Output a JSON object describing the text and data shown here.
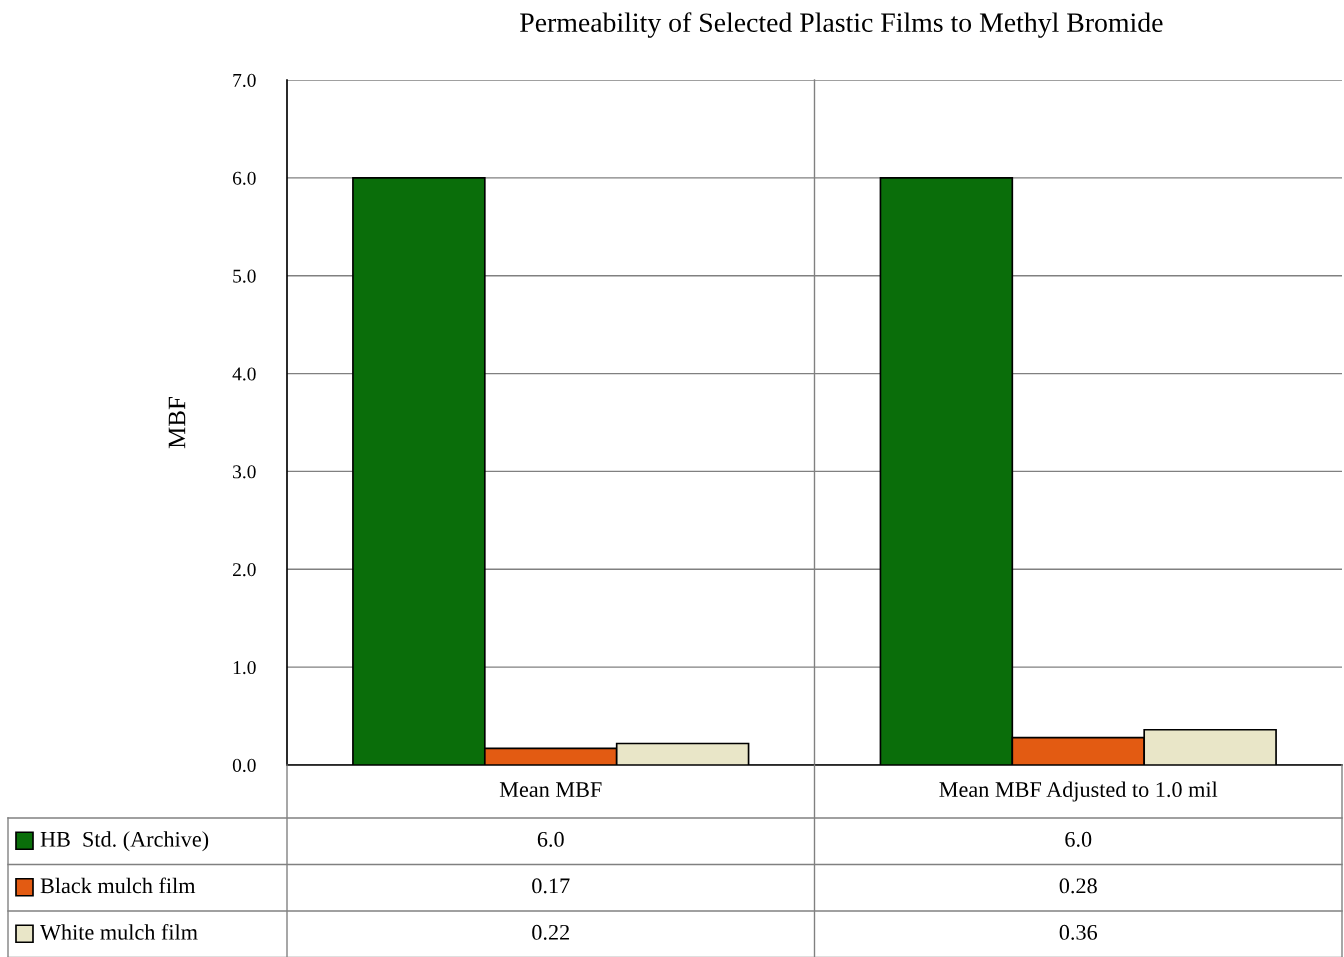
{
  "chart_data": {
    "type": "bar",
    "title": "Permeability of Selected Plastic Films to Methyl Bromide",
    "ylabel": "MBF",
    "categories": [
      "Mean MBF",
      "Mean MBF Adjusted to 1.0 mil"
    ],
    "series": [
      {
        "name": "HB  Std. (Archive)",
        "color": "#0a6e0a",
        "values": [
          6.0,
          6.0
        ],
        "value_labels": [
          "6.0",
          "6.0"
        ]
      },
      {
        "name": "Black mulch film",
        "color": "#e35b12",
        "values": [
          0.17,
          0.28
        ],
        "value_labels": [
          "0.17",
          "0.28"
        ]
      },
      {
        "name": "White mulch film",
        "color": "#e9e6c8",
        "values": [
          0.22,
          0.36
        ],
        "value_labels": [
          "0.22",
          "0.36"
        ]
      }
    ],
    "ylim": [
      0,
      7
    ],
    "yticks": [
      {
        "value": 0,
        "label": "0.0"
      },
      {
        "value": 1,
        "label": "1.0"
      },
      {
        "value": 2,
        "label": "2.0"
      },
      {
        "value": 3,
        "label": "3.0"
      },
      {
        "value": 4,
        "label": "4.0"
      },
      {
        "value": 5,
        "label": "5.0"
      },
      {
        "value": 6,
        "label": "6.0"
      },
      {
        "value": 7,
        "label": "7.0"
      }
    ],
    "grid": "y",
    "legend": "bottom left"
  }
}
